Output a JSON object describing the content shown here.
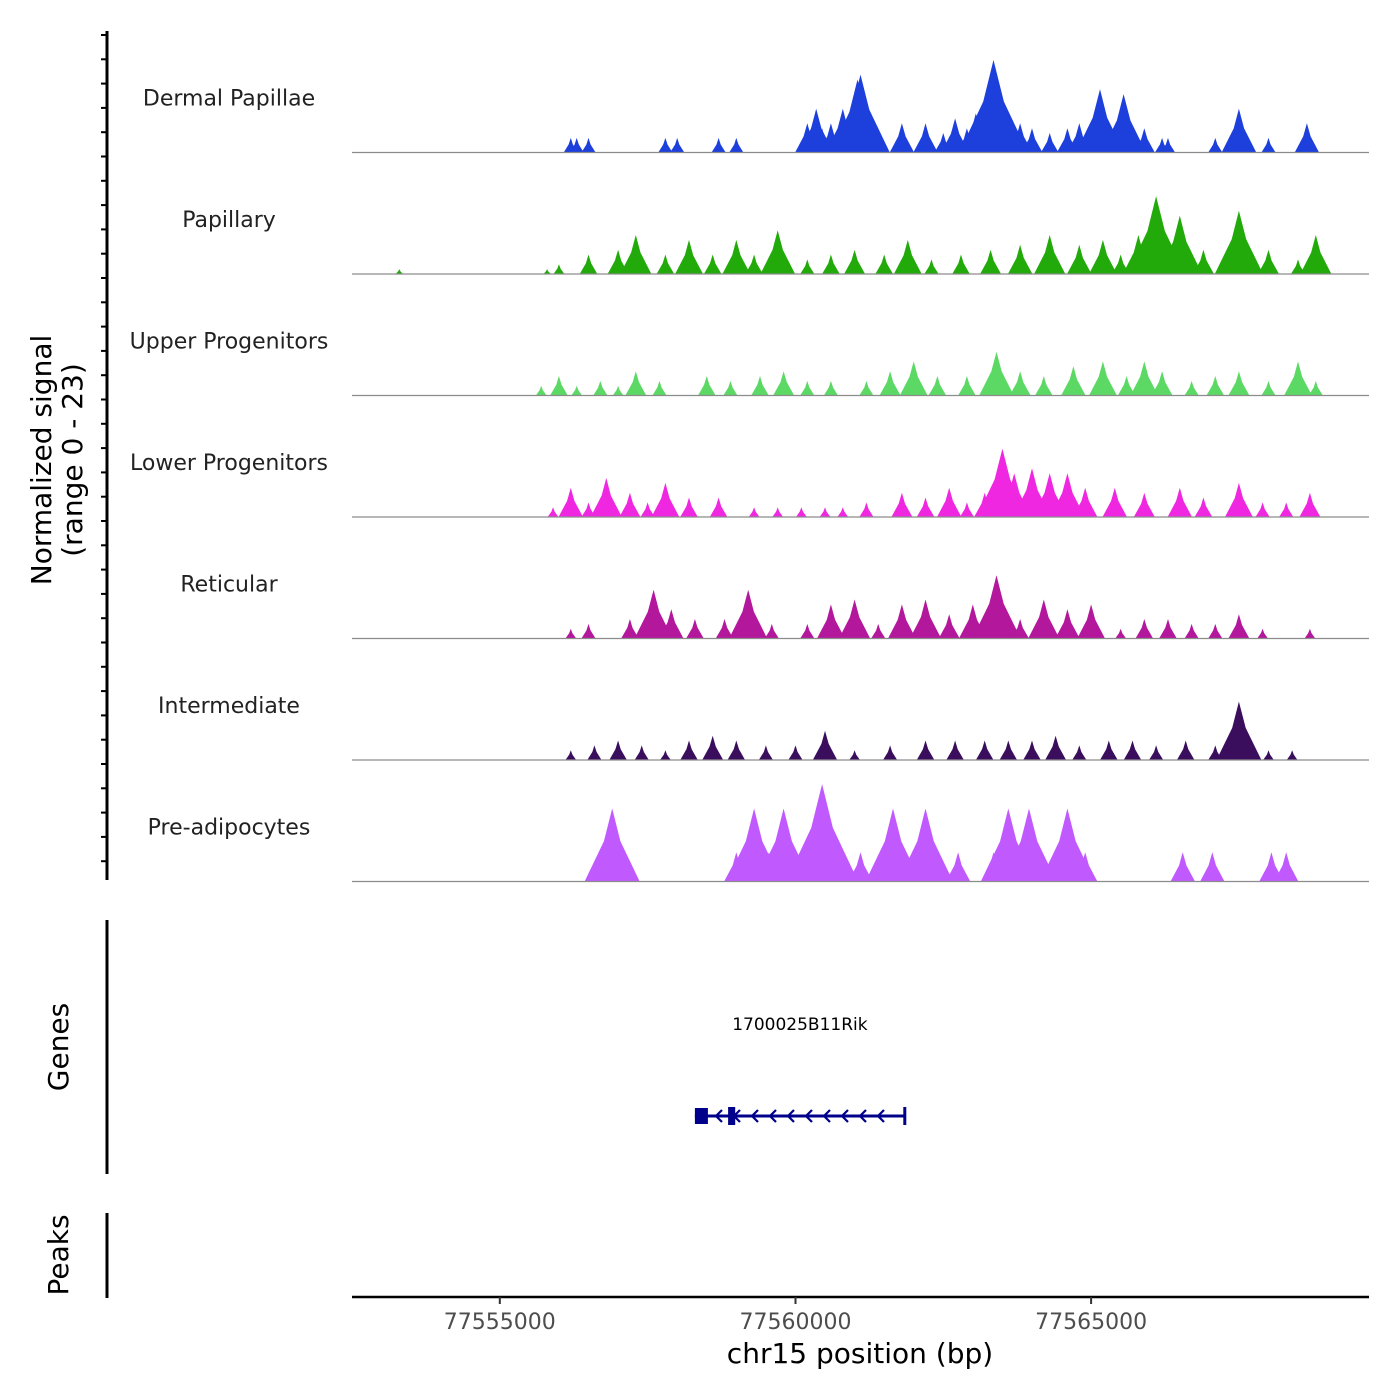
{
  "chart_data": {
    "type": "area",
    "title": "",
    "ylabel_line1": "Normalized signal",
    "ylabel_line2": "(range 0 - 23)",
    "y_range": [
      0,
      23
    ],
    "xlabel": "chr15 position (bp)",
    "x_range": [
      77552500,
      77569700
    ],
    "x_ticks": [
      {
        "value": 77555000,
        "label": "77555000"
      },
      {
        "value": 77560000,
        "label": "77560000"
      },
      {
        "value": 77565000,
        "label": "77565000"
      }
    ],
    "tracks": [
      {
        "name": "Dermal Papillae",
        "color": "#1d3fdc",
        "x": [
          77556200,
          77556300,
          77556500,
          77557800,
          77558000,
          77558700,
          77559000,
          77560200,
          77560350,
          77560450,
          77560600,
          77560700,
          77560800,
          77560900,
          77561000,
          77561050,
          77561100,
          77561200,
          77561400,
          77561800,
          77562200,
          77562500,
          77562700,
          77562900,
          77563050,
          77563350,
          77563400,
          77563550,
          77563800,
          77564000,
          77564300,
          77564600,
          77564800,
          77565150,
          77565300,
          77565450,
          77565550,
          77565900,
          77566200,
          77566300,
          77567100,
          77567500,
          77568000,
          77568650
        ],
        "y": [
          3,
          3,
          3,
          3,
          3,
          3,
          3,
          6,
          9,
          5,
          6,
          4,
          9,
          6,
          12,
          15,
          16,
          6,
          4,
          6,
          6,
          4,
          7,
          5,
          8,
          19,
          15,
          7,
          6,
          5,
          4,
          5,
          6,
          13,
          6,
          6,
          12,
          5,
          3,
          3,
          3,
          9,
          3,
          6
        ]
      },
      {
        "name": "Papillary",
        "color": "#22aa0a",
        "x": [
          77553300,
          77555800,
          77556000,
          77556500,
          77557000,
          77557300,
          77557800,
          77558200,
          77558600,
          77559000,
          77559300,
          77559700,
          77560200,
          77560600,
          77561000,
          77561500,
          77561900,
          77562300,
          77562800,
          77563300,
          77563800,
          77564300,
          77564800,
          77565200,
          77565500,
          77565800,
          77566100,
          77566500,
          77566900,
          77567300,
          77567500,
          77568000,
          77568500,
          77568800
        ],
        "y": [
          1,
          1,
          2,
          4,
          5,
          8,
          4,
          7,
          4,
          7,
          4,
          9,
          3,
          4,
          5,
          4,
          7,
          3,
          4,
          5,
          6,
          8,
          6,
          7,
          4,
          8,
          16,
          12,
          5,
          4,
          13,
          5,
          3,
          8
        ]
      },
      {
        "name": "Upper Progenitors",
        "color": "#5cd965",
        "x": [
          77555700,
          77556000,
          77556300,
          77556700,
          77557000,
          77557300,
          77557700,
          77558500,
          77558900,
          77559400,
          77559800,
          77560200,
          77560600,
          77561200,
          77561600,
          77562000,
          77562400,
          77562900,
          77563400,
          77563800,
          77564200,
          77564700,
          77565200,
          77565600,
          77565900,
          77566200,
          77566700,
          77567100,
          77567500,
          77568000,
          77568500,
          77568800
        ],
        "y": [
          2,
          4,
          2,
          3,
          2,
          5,
          3,
          4,
          3,
          4,
          5,
          3,
          3,
          3,
          5,
          7,
          4,
          4,
          9,
          5,
          4,
          6,
          7,
          4,
          7,
          5,
          3,
          4,
          5,
          3,
          7,
          3
        ]
      },
      {
        "name": "Lower Progenitors",
        "color": "#f027e0",
        "x": [
          77555900,
          77556200,
          77556500,
          77556800,
          77557200,
          77557500,
          77557800,
          77558200,
          77558700,
          77559300,
          77559700,
          77560100,
          77560500,
          77560800,
          77561200,
          77561800,
          77562200,
          77562600,
          77562900,
          77563200,
          77563500,
          77563700,
          77564000,
          77564300,
          77564600,
          77564900,
          77565400,
          77565900,
          77566500,
          77566900,
          77567500,
          77567900,
          77568300,
          77568700
        ],
        "y": [
          2,
          6,
          3,
          8,
          5,
          3,
          7,
          4,
          4,
          2,
          2,
          2,
          2,
          2,
          3,
          5,
          4,
          6,
          3,
          5,
          14,
          9,
          10,
          9,
          9,
          6,
          6,
          5,
          6,
          4,
          7,
          3,
          3,
          5
        ]
      },
      {
        "name": "Reticular",
        "color": "#b3179c",
        "x": [
          77556200,
          77556500,
          77557200,
          77557600,
          77557900,
          77558300,
          77558800,
          77559200,
          77559600,
          77560200,
          77560600,
          77561000,
          77561400,
          77561800,
          77562200,
          77562600,
          77563000,
          77563400,
          77563800,
          77564200,
          77564600,
          77565000,
          77565500,
          77565900,
          77566300,
          77566700,
          77567100,
          77567500,
          77567900,
          77568700
        ],
        "y": [
          2,
          3,
          4,
          10,
          6,
          4,
          4,
          10,
          3,
          3,
          7,
          8,
          3,
          7,
          8,
          5,
          7,
          13,
          4,
          8,
          6,
          7,
          2,
          4,
          4,
          3,
          3,
          5,
          2,
          2
        ]
      },
      {
        "name": "Intermediate",
        "color": "#3a0e5c",
        "x": [
          77556200,
          77556600,
          77557000,
          77557400,
          77557800,
          77558200,
          77558600,
          77559000,
          77559500,
          77560000,
          77560500,
          77561000,
          77561600,
          77562200,
          77562700,
          77563200,
          77563600,
          77564000,
          77564400,
          77564800,
          77565300,
          77565700,
          77566100,
          77566600,
          77567100,
          77567500,
          77568000,
          77568400
        ],
        "y": [
          2,
          3,
          4,
          3,
          2,
          4,
          5,
          4,
          3,
          3,
          6,
          2,
          3,
          4,
          4,
          4,
          4,
          4,
          5,
          3,
          4,
          4,
          3,
          4,
          3,
          12,
          2,
          2
        ]
      },
      {
        "name": "Pre-adipocytes",
        "color": "#c05aff",
        "x": [
          77556900,
          77559000,
          77559300,
          77559550,
          77559800,
          77560450,
          77560500,
          77560800,
          77561100,
          77561450,
          77561650,
          77562200,
          77562350,
          77562750,
          77563350,
          77563600,
          77563950,
          77564400,
          77564600,
          77564700,
          77564900,
          77566550,
          77567050,
          77568050,
          77568300
        ],
        "y": [
          15,
          6,
          15,
          6,
          15,
          20,
          15,
          6,
          6,
          6,
          15,
          15,
          6,
          6,
          6,
          15,
          15,
          6,
          15,
          6,
          6,
          6,
          6,
          6,
          6
        ]
      }
    ],
    "genes": [
      {
        "name": "1700025B11Rik",
        "start": 77558300,
        "end": 77561850,
        "strand": "-",
        "color": "#00008b",
        "exons": [
          [
            77558300,
            77558520
          ],
          [
            77558860,
            77558980
          ]
        ]
      }
    ],
    "lower_panels": [
      "Genes",
      "Peaks"
    ]
  }
}
